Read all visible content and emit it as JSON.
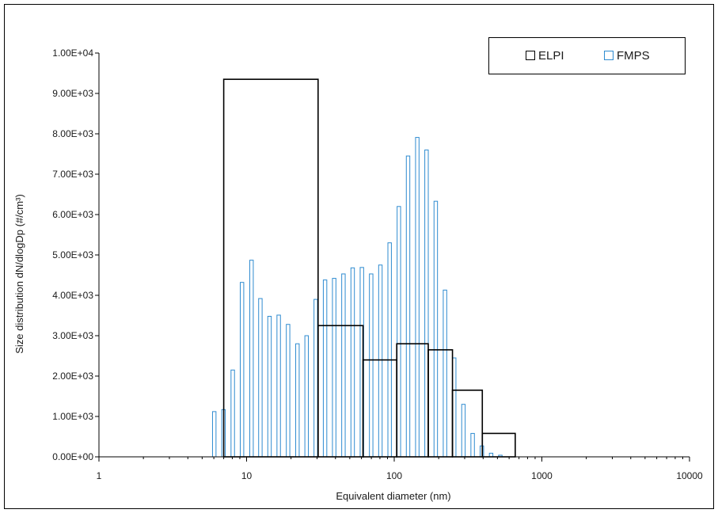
{
  "chart_data": {
    "type": "bar",
    "x_scale": "log",
    "xlabel": "Equivalent diameter (nm)",
    "ylabel": "Size distribution dN/dlogDp (#/cm³)",
    "xlim": [
      1,
      10000
    ],
    "ylim": [
      0,
      10000
    ],
    "x_ticks": [
      1,
      10,
      100,
      1000,
      10000
    ],
    "x_tick_labels": [
      "1",
      "10",
      "100",
      "1000",
      "10000"
    ],
    "y_ticks": [
      0,
      1000,
      2000,
      3000,
      4000,
      5000,
      6000,
      7000,
      8000,
      9000,
      10000
    ],
    "y_tick_labels": [
      "0.00E+00",
      "1.00E+03",
      "2.00E+03",
      "3.00E+03",
      "4.00E+03",
      "5.00E+03",
      "6.00E+03",
      "7.00E+03",
      "8.00E+03",
      "9.00E+03",
      "1.00E+04"
    ],
    "grid": false,
    "legend_position": "top-right",
    "series": [
      {
        "name": "ELPI",
        "color": "#000000",
        "style": "step-bins",
        "bins": [
          {
            "lower": 7.0,
            "upper": 30.5,
            "value": 9350
          },
          {
            "lower": 30.5,
            "upper": 61.5,
            "value": 3250
          },
          {
            "lower": 61.5,
            "upper": 104,
            "value": 2400
          },
          {
            "lower": 104,
            "upper": 170,
            "value": 2800
          },
          {
            "lower": 170,
            "upper": 248,
            "value": 2650
          },
          {
            "lower": 248,
            "upper": 395,
            "value": 1650
          },
          {
            "lower": 395,
            "upper": 660,
            "value": 580
          }
        ]
      },
      {
        "name": "FMPS",
        "color": "#2e8bd0",
        "style": "narrow-bars",
        "x": [
          6.04,
          6.98,
          8.06,
          9.31,
          10.8,
          12.4,
          14.3,
          16.5,
          19.1,
          22.1,
          25.5,
          29.4,
          34.0,
          39.2,
          45.3,
          52.3,
          60.4,
          69.8,
          80.6,
          93.1,
          107.5,
          124.1,
          143.3,
          165.5,
          191.1,
          220.7,
          254.8,
          294.3,
          339.8,
          392.4,
          453.2,
          523.3
        ],
        "values": [
          1120,
          1170,
          2150,
          4320,
          4870,
          3920,
          3480,
          3510,
          3280,
          2800,
          3000,
          3900,
          4380,
          4420,
          4530,
          4680,
          4690,
          4530,
          4750,
          5300,
          6200,
          7450,
          7910,
          7600,
          6330,
          4130,
          2450,
          1300,
          580,
          270,
          90,
          40
        ]
      }
    ]
  }
}
